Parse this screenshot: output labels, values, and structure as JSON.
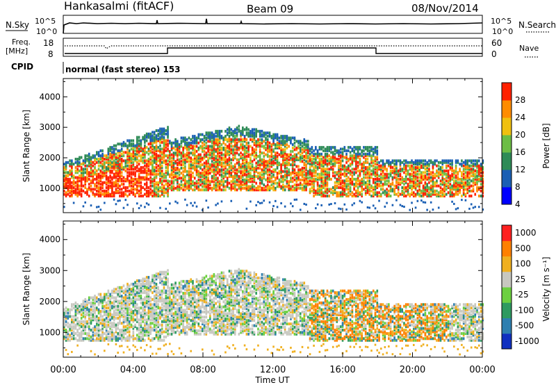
{
  "header": {
    "station": "Hankasalmi (fitACF)",
    "beam": "Beam 09",
    "date": "08/Nov/2014"
  },
  "noise_panel": {
    "left_label": "N.Sky",
    "right_label": "N.Search",
    "ticks": [
      "10^5",
      "10^0"
    ]
  },
  "freq_panel": {
    "left_label_line1": "Freq.",
    "left_label_line2": "[MHz]",
    "left_ticks": [
      "18",
      "8"
    ],
    "right_label": "Nave",
    "right_ticks": [
      "60",
      "0"
    ]
  },
  "cpid": {
    "label": "CPID",
    "text": "normal (fast stereo) 153"
  },
  "chart_data": [
    {
      "type": "heatmap",
      "name": "power",
      "ylabel": "Slant Range [km]",
      "xlabel": "",
      "ylim": [
        200,
        4600
      ],
      "yticks": [
        "4000",
        "3000",
        "2000",
        "1000"
      ],
      "colorbar_label": "Power [dB]",
      "colorbar_ticks": [
        "28",
        "24",
        "20",
        "16",
        "12",
        "8",
        "4"
      ],
      "colorbar_colors": [
        "#0000ff",
        "#1a5fb4",
        "#2e8b57",
        "#6cbd45",
        "#f0c010",
        "#ff8c00",
        "#ff2000"
      ]
    },
    {
      "type": "heatmap",
      "name": "velocity",
      "ylabel": "Slant Range [km]",
      "xlabel": "Time UT",
      "ylim": [
        200,
        4600
      ],
      "yticks": [
        "4000",
        "3000",
        "2000",
        "1000"
      ],
      "colorbar_label": "Velocity [m s⁻¹]",
      "colorbar_ticks": [
        "1000",
        "500",
        "100",
        "25",
        "-25",
        "-100",
        "-500",
        "-1000"
      ],
      "colorbar_colors": [
        "#1030c0",
        "#2e7fb0",
        "#2e9a60",
        "#6cd040",
        "#c8c8c0",
        "#f0b020",
        "#ff8000",
        "#ff2020"
      ],
      "xticks": [
        "00:00",
        "04:00",
        "08:00",
        "12:00",
        "16:00",
        "20:00",
        "00:00"
      ]
    }
  ]
}
